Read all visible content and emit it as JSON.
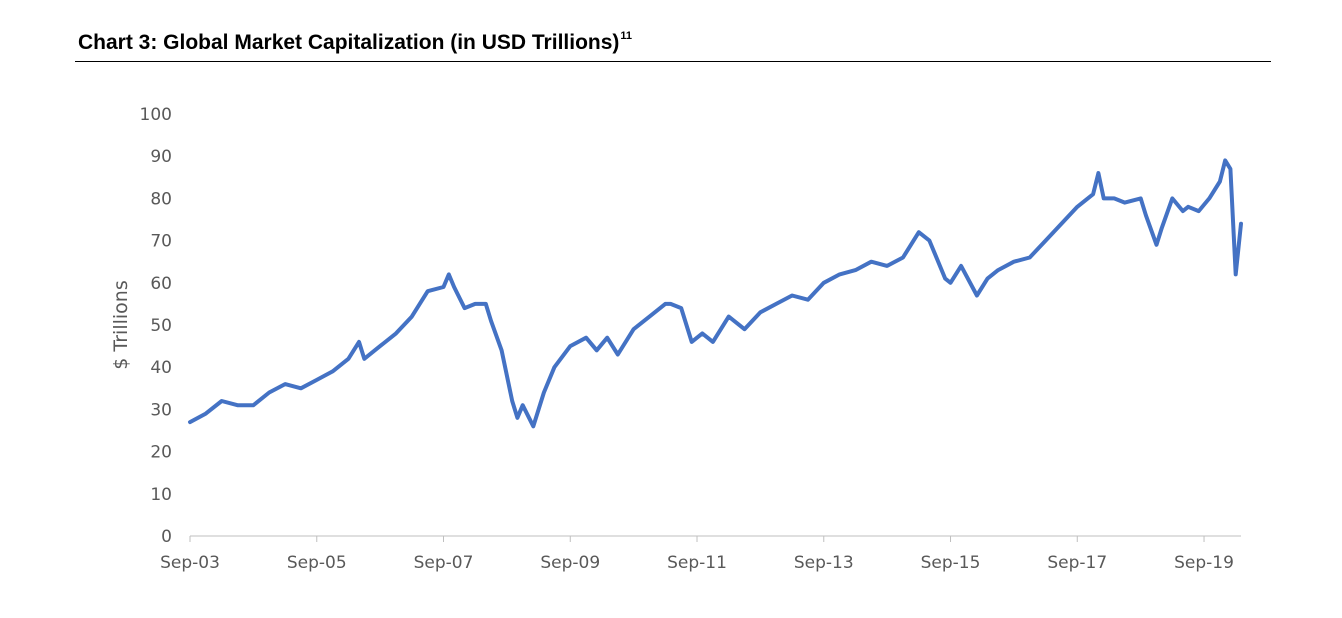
{
  "title": "Chart 3: Global Market Capitalization (in USD Trillions)",
  "title_footnote": "11",
  "chart_data": {
    "type": "line",
    "title": "Chart 3: Global Market Capitalization (in USD Trillions)",
    "xlabel": "",
    "ylabel": "$ Trillions",
    "ylim": [
      0,
      100
    ],
    "yticks": [
      "0",
      "10",
      "20",
      "30",
      "40",
      "50",
      "60",
      "70",
      "80",
      "90",
      "100"
    ],
    "xticks": [
      "Sep-03",
      "Sep-05",
      "Sep-07",
      "Sep-09",
      "Sep-11",
      "Sep-13",
      "Sep-15",
      "Sep-17",
      "Sep-19"
    ],
    "xlim": [
      "2003-09",
      "2020-04"
    ],
    "grid": false,
    "legend": "none",
    "line_color": "#4472C4",
    "series": [
      {
        "x": [
          "2003-09",
          "2003-12",
          "2004-03",
          "2004-06",
          "2004-09",
          "2004-12",
          "2005-03",
          "2005-06",
          "2005-09",
          "2005-12",
          "2006-03",
          "2006-05",
          "2006-06",
          "2006-09",
          "2006-12",
          "2007-03",
          "2007-06",
          "2007-09",
          "2007-10",
          "2007-11",
          "2008-01",
          "2008-03",
          "2008-05",
          "2008-06",
          "2008-08",
          "2008-10",
          "2008-11",
          "2008-12",
          "2009-02",
          "2009-03",
          "2009-04",
          "2009-06",
          "2009-09",
          "2009-12",
          "2010-02",
          "2010-04",
          "2010-06",
          "2010-09",
          "2010-12",
          "2011-03",
          "2011-04",
          "2011-06",
          "2011-08",
          "2011-10",
          "2011-12",
          "2012-03",
          "2012-06",
          "2012-09",
          "2012-12",
          "2013-03",
          "2013-06",
          "2013-09",
          "2013-12",
          "2014-03",
          "2014-06",
          "2014-09",
          "2014-12",
          "2015-03",
          "2015-05",
          "2015-08",
          "2015-09",
          "2015-11",
          "2016-02",
          "2016-04",
          "2016-06",
          "2016-09",
          "2016-12",
          "2017-03",
          "2017-06",
          "2017-09",
          "2017-12",
          "2018-01",
          "2018-02",
          "2018-04",
          "2018-06",
          "2018-09",
          "2018-10",
          "2018-12",
          "2019-01",
          "2019-03",
          "2019-05",
          "2019-06",
          "2019-08",
          "2019-10",
          "2019-12",
          "2020-01",
          "2020-02",
          "2020-03",
          "2020-04"
        ],
        "values": [
          27,
          29,
          32,
          31,
          31,
          34,
          36,
          35,
          37,
          39,
          42,
          46,
          42,
          45,
          48,
          52,
          58,
          59,
          62,
          59,
          54,
          55,
          55,
          51,
          44,
          32,
          28,
          31,
          26,
          30,
          34,
          40,
          45,
          47,
          44,
          47,
          43,
          49,
          52,
          55,
          55,
          54,
          46,
          48,
          46,
          52,
          49,
          53,
          55,
          57,
          56,
          60,
          62,
          63,
          65,
          64,
          66,
          72,
          70,
          61,
          60,
          64,
          57,
          61,
          63,
          65,
          66,
          70,
          74,
          78,
          81,
          86,
          80,
          80,
          79,
          80,
          76,
          69,
          73,
          80,
          77,
          78,
          77,
          80,
          84,
          89,
          87,
          62,
          74
        ]
      }
    ]
  }
}
